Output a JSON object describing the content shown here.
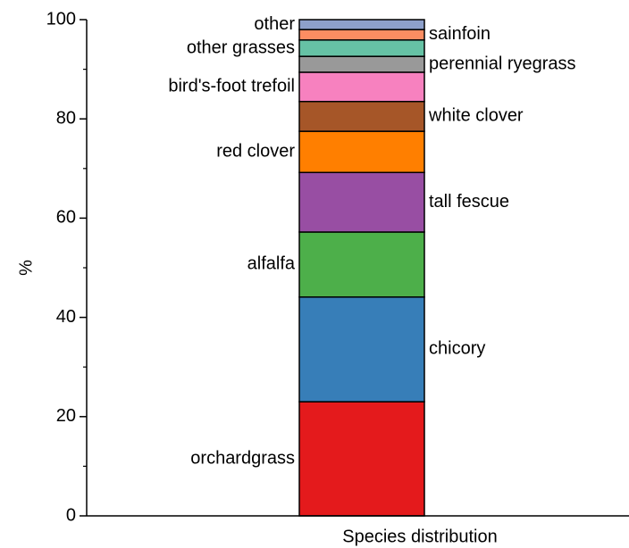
{
  "chart_data": {
    "type": "bar",
    "stacked": true,
    "ylabel": "%",
    "categories": [
      "Species distribution"
    ],
    "ylim": [
      0,
      100
    ],
    "yticks": [
      0,
      20,
      40,
      60,
      80,
      100
    ],
    "minor_yticks": [
      10,
      30,
      50,
      70,
      90
    ],
    "series": [
      {
        "name": "orchardgrass",
        "color": "#e41a1c",
        "values": [
          23.0
        ]
      },
      {
        "name": "chicory",
        "color": "#377eb8",
        "values": [
          21.1
        ]
      },
      {
        "name": "alfalfa",
        "color": "#4daf4a",
        "values": [
          13.1
        ]
      },
      {
        "name": "tall fescue",
        "color": "#984ea3",
        "values": [
          12.0
        ]
      },
      {
        "name": "red clover",
        "color": "#ff7f00",
        "values": [
          8.3
        ]
      },
      {
        "name": "white clover",
        "color": "#a65628",
        "values": [
          6.0
        ]
      },
      {
        "name": "bird's-foot trefoil",
        "color": "#f781bf",
        "values": [
          5.9
        ]
      },
      {
        "name": "perennial ryegrass",
        "color": "#999999",
        "values": [
          3.2
        ]
      },
      {
        "name": "other grasses",
        "color": "#66c2a5",
        "values": [
          3.3
        ]
      },
      {
        "name": "sainfoin",
        "color": "#fc8d62",
        "values": [
          2.1
        ]
      },
      {
        "name": "other",
        "color": "#8da0cb",
        "values": [
          2.0
        ]
      }
    ]
  }
}
